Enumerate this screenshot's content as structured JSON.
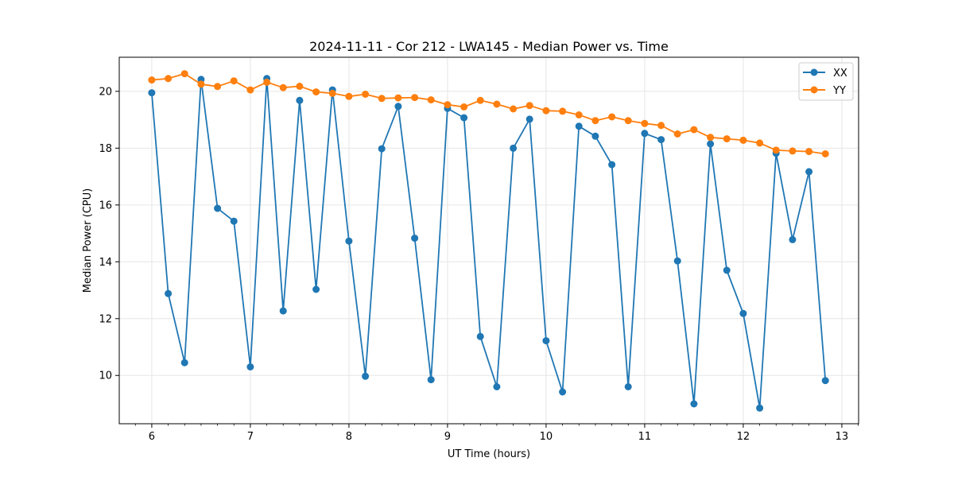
{
  "chart_data": {
    "type": "line",
    "title": "2024-11-11 - Cor 212 - LWA145 - Median Power vs. Time",
    "xlabel": "UT Time (hours)",
    "ylabel": "Median Power (CPU)",
    "xlim": [
      5.67,
      13.17
    ],
    "ylim": [
      8.3,
      21.2
    ],
    "xticks": [
      6,
      7,
      8,
      9,
      10,
      11,
      12,
      13
    ],
    "yticks": [
      10,
      12,
      14,
      16,
      18,
      20
    ],
    "grid": true,
    "legend_position": "top-right",
    "x": [
      6.0,
      6.167,
      6.333,
      6.5,
      6.667,
      6.833,
      7.0,
      7.167,
      7.333,
      7.5,
      7.667,
      7.833,
      8.0,
      8.167,
      8.333,
      8.5,
      8.667,
      8.833,
      9.0,
      9.167,
      9.333,
      9.5,
      9.667,
      9.833,
      10.0,
      10.167,
      10.333,
      10.5,
      10.667,
      10.833,
      11.0,
      11.167,
      11.333,
      11.5,
      11.667,
      11.833,
      12.0,
      12.167,
      12.333,
      12.5,
      12.667,
      12.833
    ],
    "series": [
      {
        "name": "XX",
        "color": "#1f77b4",
        "values": [
          19.95,
          12.88,
          10.45,
          20.42,
          15.88,
          15.43,
          10.3,
          20.45,
          12.27,
          19.68,
          13.03,
          20.05,
          14.73,
          9.97,
          17.98,
          19.47,
          14.83,
          9.85,
          19.4,
          19.07,
          11.37,
          9.6,
          18.0,
          19.02,
          11.22,
          9.42,
          18.77,
          18.42,
          17.42,
          9.6,
          18.52,
          18.3,
          14.03,
          9.0,
          18.15,
          13.7,
          12.18,
          8.85,
          17.82,
          14.78,
          17.17,
          9.82
        ]
      },
      {
        "name": "YY",
        "color": "#ff7f0e",
        "values": [
          20.4,
          20.45,
          20.62,
          20.25,
          20.17,
          20.37,
          20.05,
          20.32,
          20.13,
          20.18,
          19.98,
          19.93,
          19.82,
          19.9,
          19.75,
          19.77,
          19.78,
          19.7,
          19.53,
          19.45,
          19.68,
          19.55,
          19.38,
          19.5,
          19.32,
          19.3,
          19.17,
          18.97,
          19.1,
          18.97,
          18.87,
          18.8,
          18.5,
          18.65,
          18.38,
          18.33,
          18.28,
          18.18,
          17.93,
          17.9,
          17.88,
          17.8
        ]
      }
    ]
  }
}
